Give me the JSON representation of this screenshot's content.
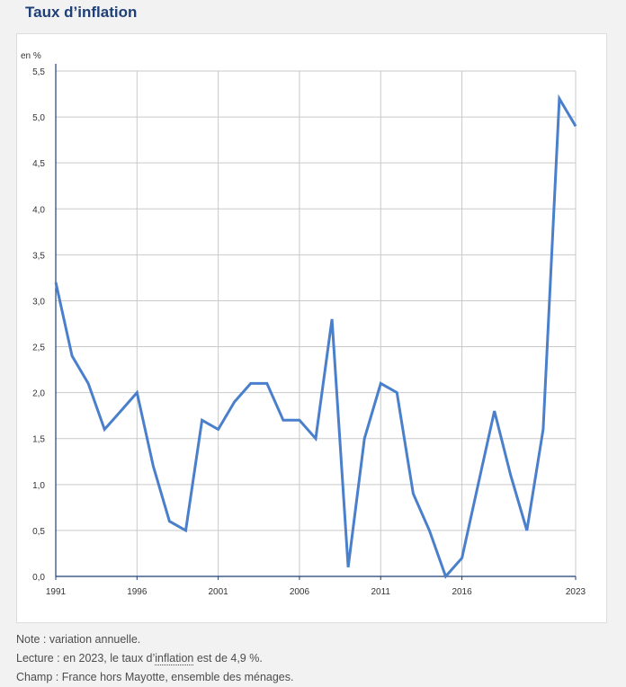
{
  "page": {
    "title": "Taux d’inflation"
  },
  "chart_data": {
    "type": "line",
    "unit_label": "en %",
    "ylim": [
      0,
      5.5
    ],
    "yticks": [
      "0,0",
      "0,5",
      "1,0",
      "1,5",
      "2,0",
      "2,5",
      "3,0",
      "3,5",
      "4,0",
      "4,5",
      "5,0",
      "5,5"
    ],
    "xlim": [
      1991,
      2023
    ],
    "xticks": [
      "1991",
      "1996",
      "2001",
      "2006",
      "2011",
      "2016",
      "2023"
    ],
    "grid": true,
    "series": [
      {
        "color": "#4a7fcb",
        "x": [
          1991,
          1992,
          1993,
          1994,
          1995,
          1996,
          1997,
          1998,
          1999,
          2000,
          2001,
          2002,
          2003,
          2004,
          2005,
          2006,
          2007,
          2008,
          2009,
          2010,
          2011,
          2012,
          2013,
          2014,
          2015,
          2016,
          2017,
          2018,
          2019,
          2020,
          2021,
          2022,
          2023
        ],
        "values": [
          3.2,
          2.4,
          2.1,
          1.6,
          1.8,
          2.0,
          1.2,
          0.6,
          0.5,
          1.7,
          1.6,
          1.9,
          2.1,
          2.1,
          1.7,
          1.7,
          1.5,
          2.8,
          0.1,
          1.5,
          2.1,
          2.0,
          0.9,
          0.5,
          0.0,
          0.2,
          1.0,
          1.8,
          1.1,
          0.5,
          1.6,
          5.2,
          4.9
        ]
      }
    ]
  },
  "notes": {
    "line1": "Note : variation annuelle.",
    "line2_prefix": "Lecture : en 2023, le taux d’",
    "line2_link": "inflation",
    "line2_suffix": " est de 4,9 %.",
    "line3": "Champ : France hors Mayotte, ensemble des ménages."
  }
}
